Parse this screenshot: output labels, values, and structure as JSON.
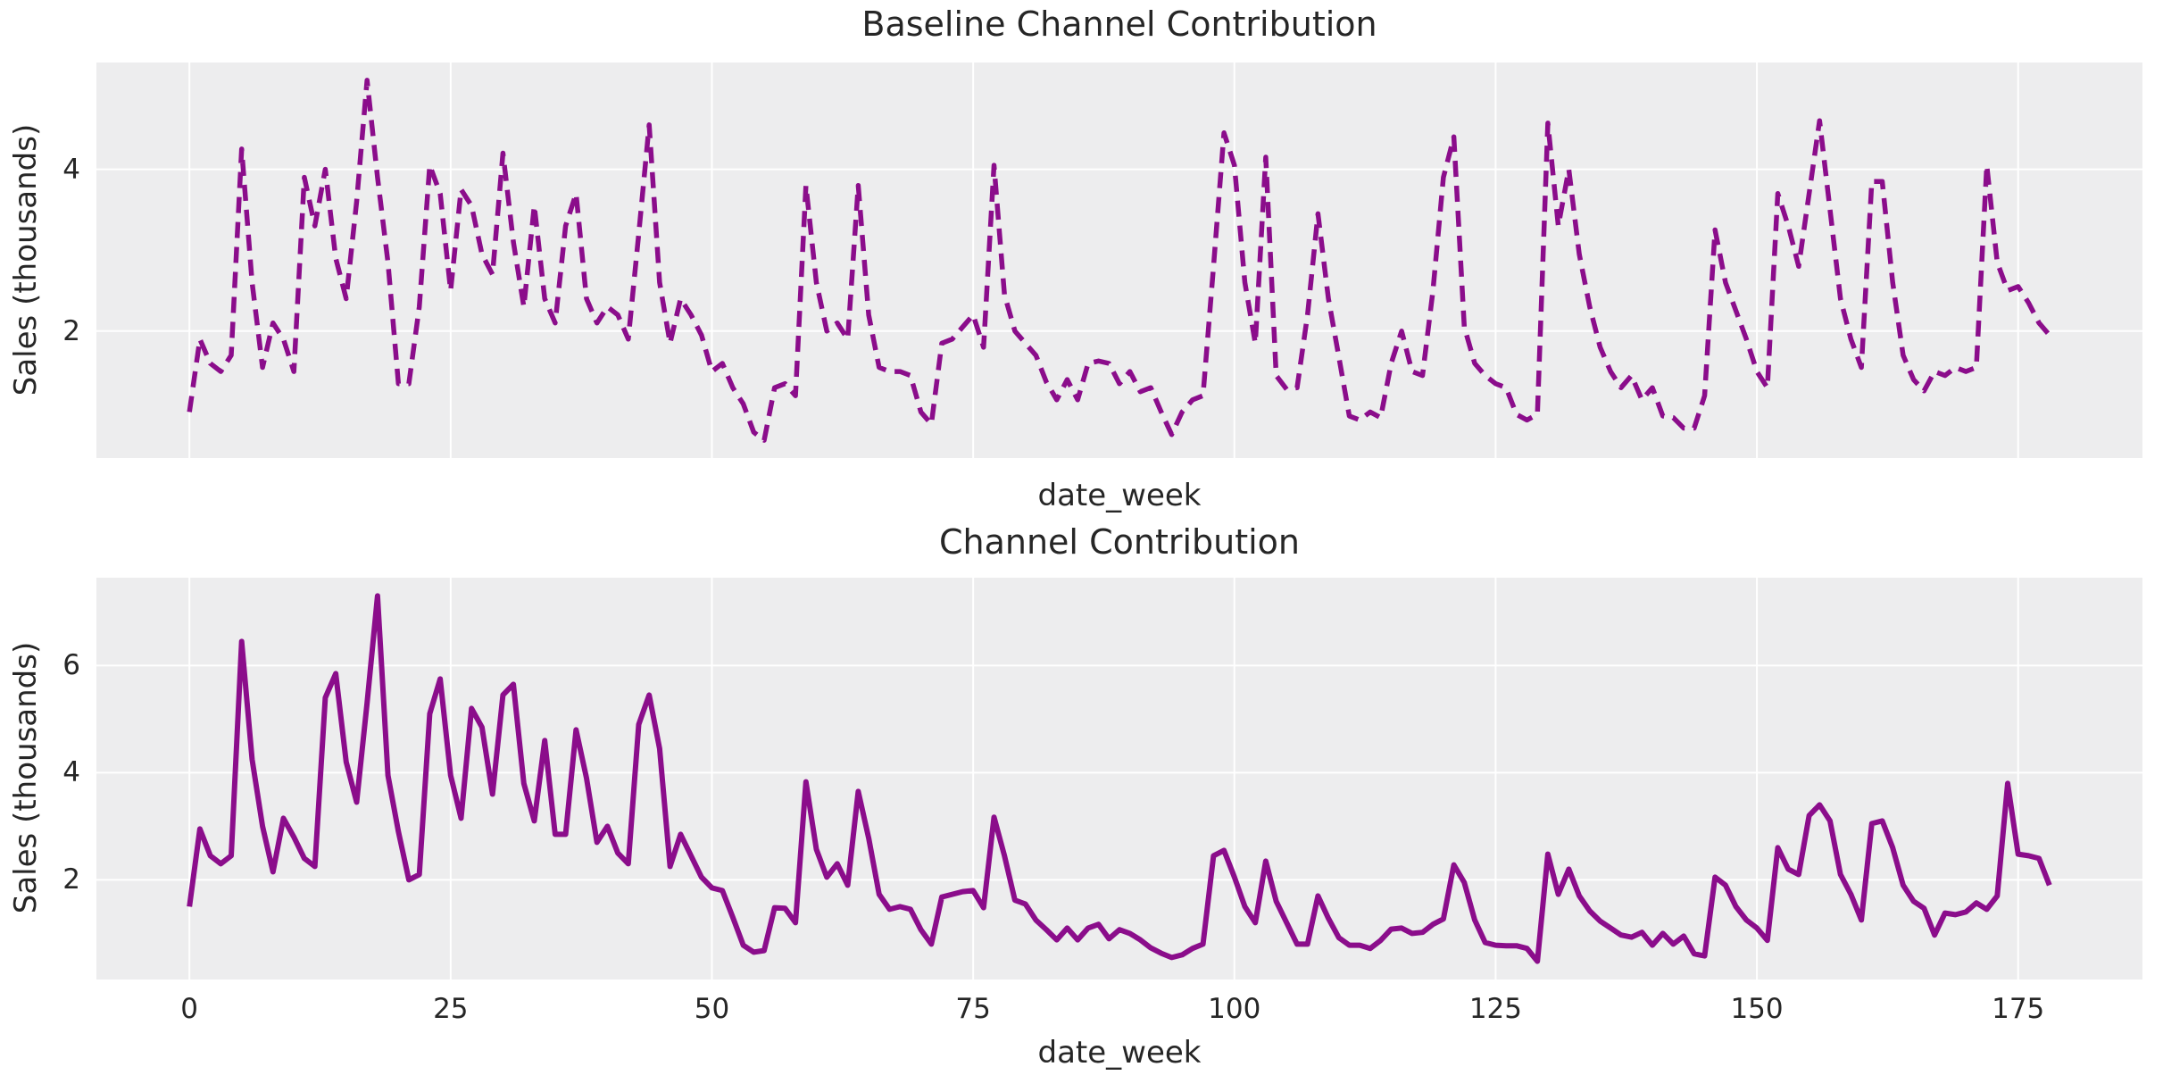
{
  "figure": {
    "background": "#ffffff",
    "plot_background": "#ededee",
    "grid_color": "#ffffff",
    "text_color": "#262626",
    "accent_line_color": "#8b0d8b"
  },
  "chart_data": [
    {
      "type": "line",
      "title": "Baseline Channel Contribution",
      "xlabel": "date_week",
      "ylabel": "Sales (thousands)",
      "legend": null,
      "line_color": "#8b0d8b",
      "line_style": "dashed",
      "line_width": 5.5,
      "grid": true,
      "x_start": 0,
      "x_step": 1,
      "xlim": [
        -8.9,
        186.9
      ],
      "ylim": [
        0.43,
        5.32
      ],
      "xticks": [
        0,
        25,
        50,
        75,
        100,
        125,
        150,
        175
      ],
      "show_xtick_labels": false,
      "yticks": [
        2,
        4
      ],
      "values": [
        1.0,
        1.9,
        1.6,
        1.5,
        1.7,
        4.25,
        2.6,
        1.55,
        2.1,
        1.9,
        1.5,
        3.9,
        3.3,
        4.0,
        2.9,
        2.4,
        3.6,
        5.1,
        3.9,
        2.85,
        1.35,
        1.35,
        2.3,
        4.05,
        3.7,
        2.5,
        3.75,
        3.55,
        2.95,
        2.7,
        4.2,
        3.1,
        2.3,
        3.55,
        2.4,
        2.1,
        3.3,
        3.7,
        2.4,
        2.1,
        2.3,
        2.2,
        1.9,
        3.2,
        4.55,
        2.6,
        1.85,
        2.4,
        2.2,
        1.95,
        1.5,
        1.6,
        1.3,
        1.1,
        0.75,
        0.65,
        1.3,
        1.35,
        1.2,
        3.8,
        2.6,
        2.0,
        2.1,
        1.9,
        3.8,
        2.2,
        1.55,
        1.5,
        1.5,
        1.45,
        1.0,
        0.85,
        1.85,
        1.9,
        2.05,
        2.2,
        1.8,
        4.05,
        2.45,
        2.0,
        1.85,
        1.7,
        1.37,
        1.15,
        1.4,
        1.15,
        1.6,
        1.63,
        1.6,
        1.35,
        1.5,
        1.25,
        1.3,
        1.0,
        0.72,
        1.0,
        1.15,
        1.2,
        2.8,
        4.45,
        4.05,
        2.6,
        1.85,
        4.15,
        1.45,
        1.28,
        1.3,
        2.2,
        3.45,
        2.4,
        1.68,
        0.95,
        0.9,
        1.0,
        0.93,
        1.6,
        2.0,
        1.5,
        1.45,
        2.5,
        3.9,
        4.4,
        2.05,
        1.6,
        1.45,
        1.35,
        1.3,
        0.97,
        0.9,
        0.97,
        4.57,
        3.3,
        4.0,
        2.95,
        2.3,
        1.8,
        1.5,
        1.3,
        1.45,
        1.15,
        1.3,
        0.95,
        0.93,
        0.8,
        0.8,
        1.2,
        3.25,
        2.6,
        2.25,
        1.9,
        1.5,
        1.3,
        3.7,
        3.3,
        2.8,
        3.7,
        4.6,
        3.5,
        2.4,
        1.9,
        1.55,
        3.85,
        3.85,
        2.6,
        1.7,
        1.4,
        1.26,
        1.5,
        1.45,
        1.55,
        1.5,
        1.55,
        4.05,
        2.85,
        2.5,
        2.55,
        2.35,
        2.1,
        1.95
      ]
    },
    {
      "type": "line",
      "title": "Channel Contribution",
      "xlabel": "date_week",
      "ylabel": "Sales (thousands)",
      "legend": null,
      "line_color": "#8b0d8b",
      "line_style": "solid",
      "line_width": 6,
      "grid": true,
      "x_start": 0,
      "x_step": 1,
      "xlim": [
        -8.9,
        186.9
      ],
      "ylim": [
        0.14,
        7.64
      ],
      "xticks": [
        0,
        25,
        50,
        75,
        100,
        125,
        150,
        175
      ],
      "show_xtick_labels": true,
      "yticks": [
        2,
        4,
        6
      ],
      "values": [
        1.5,
        2.95,
        2.45,
        2.3,
        2.45,
        6.45,
        4.25,
        3.0,
        2.15,
        3.15,
        2.8,
        2.4,
        2.25,
        5.4,
        5.85,
        4.2,
        3.45,
        5.3,
        7.3,
        3.95,
        2.9,
        2.0,
        2.1,
        5.1,
        5.75,
        3.95,
        3.15,
        5.2,
        4.85,
        3.6,
        5.45,
        5.65,
        3.8,
        3.1,
        4.6,
        2.85,
        2.85,
        4.8,
        3.9,
        2.7,
        3.0,
        2.5,
        2.3,
        4.9,
        5.45,
        4.45,
        2.25,
        2.85,
        2.45,
        2.05,
        1.85,
        1.8,
        1.3,
        0.78,
        0.65,
        0.68,
        1.48,
        1.47,
        1.2,
        3.83,
        2.57,
        2.05,
        2.3,
        1.9,
        3.65,
        2.78,
        1.73,
        1.45,
        1.5,
        1.45,
        1.07,
        0.8,
        1.68,
        1.73,
        1.78,
        1.8,
        1.48,
        3.17,
        2.45,
        1.62,
        1.55,
        1.25,
        1.07,
        0.88,
        1.1,
        0.88,
        1.1,
        1.17,
        0.9,
        1.07,
        1.0,
        0.88,
        0.73,
        0.63,
        0.55,
        0.6,
        0.72,
        0.8,
        2.45,
        2.55,
        2.05,
        1.5,
        1.2,
        2.35,
        1.6,
        1.2,
        0.8,
        0.8,
        1.7,
        1.28,
        0.92,
        0.78,
        0.78,
        0.72,
        0.87,
        1.08,
        1.1,
        1.0,
        1.02,
        1.17,
        1.27,
        2.28,
        1.95,
        1.25,
        0.83,
        0.78,
        0.77,
        0.77,
        0.72,
        0.48,
        2.48,
        1.73,
        2.2,
        1.7,
        1.42,
        1.23,
        1.1,
        0.97,
        0.93,
        1.02,
        0.78,
        1.0,
        0.8,
        0.95,
        0.62,
        0.58,
        2.05,
        1.9,
        1.5,
        1.25,
        1.1,
        0.87,
        2.6,
        2.2,
        2.1,
        3.2,
        3.4,
        3.1,
        2.1,
        1.73,
        1.25,
        3.05,
        3.1,
        2.6,
        1.9,
        1.6,
        1.47,
        0.97,
        1.38,
        1.35,
        1.4,
        1.57,
        1.45,
        1.7,
        3.8,
        2.48,
        2.45,
        2.4,
        1.9
      ]
    }
  ]
}
